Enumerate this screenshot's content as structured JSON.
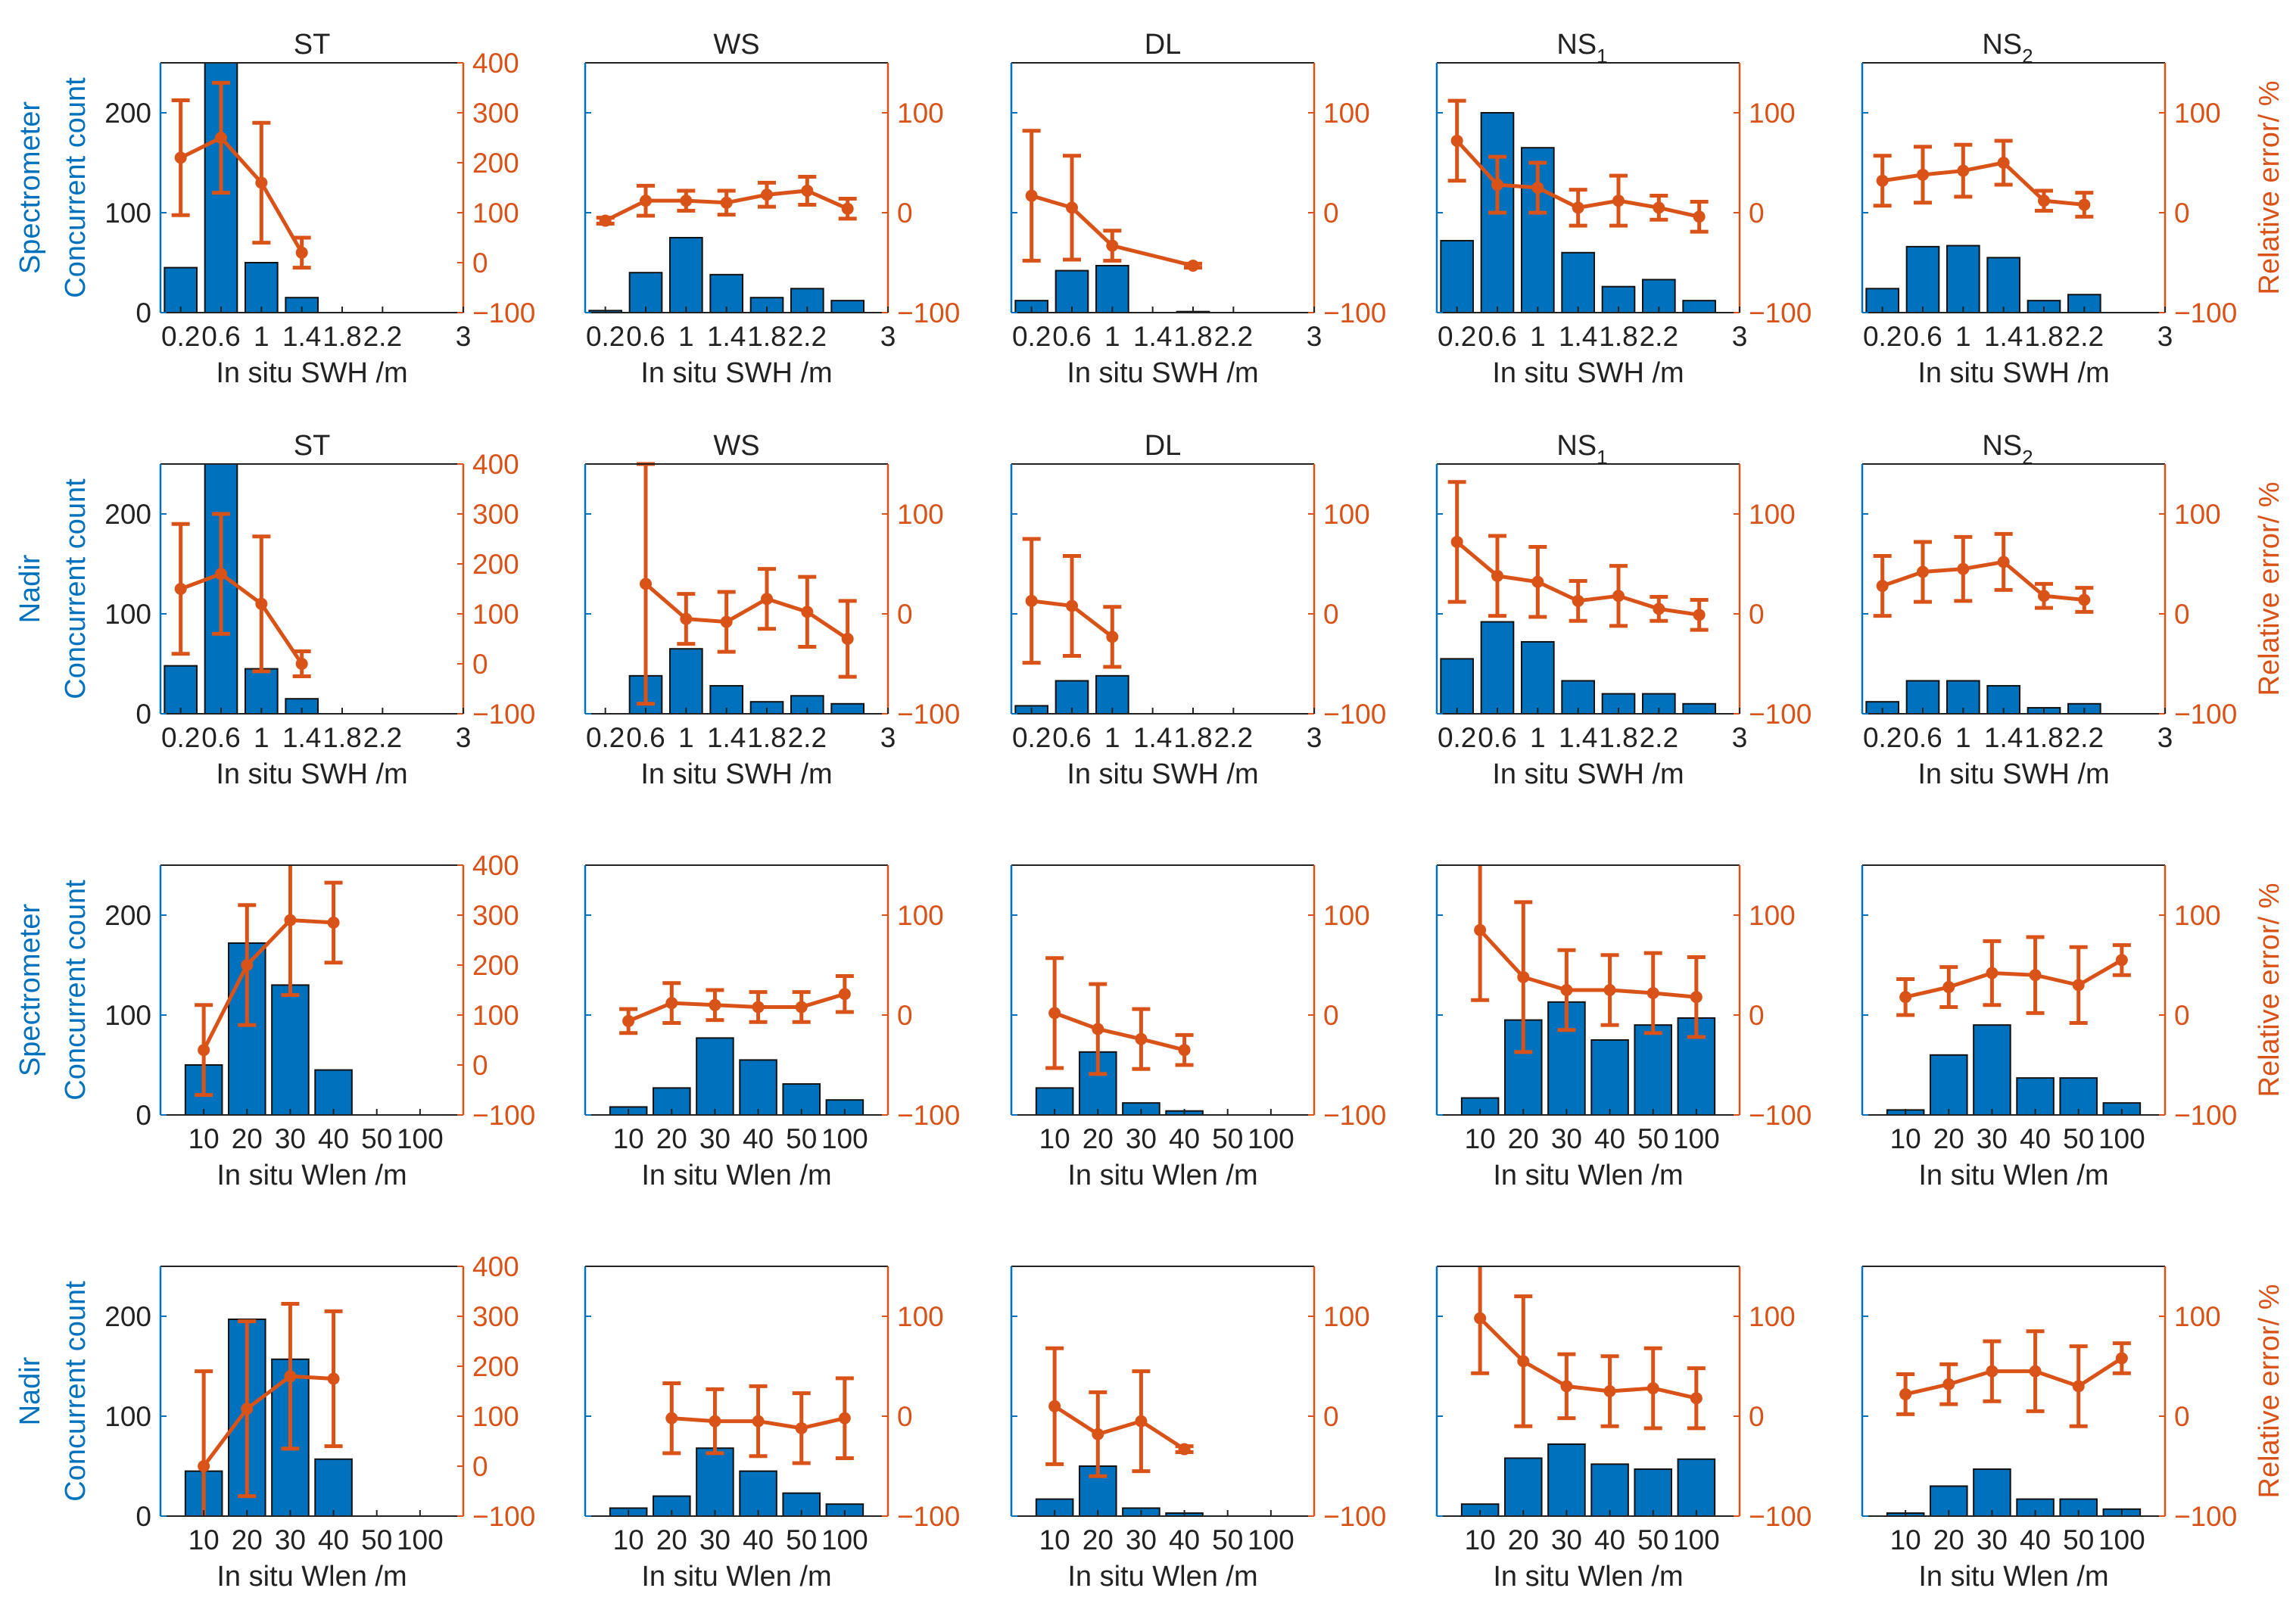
{
  "colors": {
    "left_axis": "#0072BD",
    "right_axis": "#D95319",
    "bar_fill": "#0072BD",
    "bar_edge": "#111111",
    "error_line": "#D95319",
    "frame": "#222222"
  },
  "left_ylim": [
    0,
    250
  ],
  "left_ticks": [
    "0",
    "100",
    "200"
  ],
  "left_tick_values": [
    0,
    100,
    200
  ],
  "right_tick_sets": {
    "big": {
      "ylim": [
        -100,
        400
      ],
      "labels": [
        "400",
        "300",
        "200",
        "100",
        "0",
        "−100"
      ],
      "values": [
        400,
        300,
        200,
        100,
        0,
        -100
      ]
    },
    "small": {
      "ylim": [
        -100,
        150
      ],
      "labels": [
        "100",
        "0",
        "−100"
      ],
      "values": [
        100,
        0,
        -100
      ]
    }
  },
  "right_ylabel": "Relative error/ %",
  "x_sets": {
    "swh": {
      "xlim": [
        0,
        3
      ],
      "tick_values": [
        0.2,
        0.6,
        1.0,
        1.4,
        1.8,
        2.2,
        3.0
      ],
      "tick_labels": [
        "0.2",
        "0.6",
        "1",
        "1.4",
        "1.8",
        "2.2",
        "3"
      ],
      "bar_centers": [
        0.2,
        0.6,
        1.0,
        1.4,
        1.8,
        2.2,
        2.6
      ],
      "bar_width": 0.32,
      "xlabel": "In situ SWH /m"
    },
    "wlen": {
      "xlim": [
        0,
        7
      ],
      "tick_values": [
        1,
        2,
        3,
        4,
        5,
        6
      ],
      "tick_labels": [
        "10",
        "20",
        "30",
        "40",
        "50",
        "100"
      ],
      "bar_centers": [
        1,
        2,
        3,
        4,
        5,
        6
      ],
      "bar_width": 0.85,
      "xlabel": "In situ Wlen /m"
    }
  },
  "rows": [
    {
      "row_label": "Spectrometer",
      "ylabel": "Concurrent count"
    },
    {
      "row_label": "Nadir",
      "ylabel": "Concurrent count"
    },
    {
      "row_label": "Spectrometer",
      "ylabel": "Concurrent count"
    },
    {
      "row_label": "Nadir",
      "ylabel": "Concurrent count"
    }
  ],
  "chart_data": [
    {
      "type": "bar+errorbar",
      "row": 0,
      "col": 0,
      "title": "ST",
      "sub": "",
      "x_set": "swh",
      "right_set": "big",
      "counts": [
        45,
        250,
        50,
        15,
        0,
        0,
        0
      ],
      "err_mean": [
        210,
        250,
        160,
        20,
        null,
        null,
        null
      ],
      "err_std": [
        115,
        110,
        120,
        30,
        null,
        null,
        null
      ]
    },
    {
      "type": "bar+errorbar",
      "row": 0,
      "col": 1,
      "title": "WS",
      "sub": "",
      "x_set": "swh",
      "right_set": "small",
      "counts": [
        2,
        40,
        75,
        38,
        15,
        24,
        12
      ],
      "err_mean": [
        -8,
        12,
        12,
        10,
        18,
        22,
        4
      ],
      "err_std": [
        3,
        15,
        10,
        12,
        12,
        14,
        10
      ]
    },
    {
      "type": "bar+errorbar",
      "row": 0,
      "col": 2,
      "title": "DL",
      "sub": "",
      "x_set": "swh",
      "right_set": "small",
      "counts": [
        12,
        42,
        47,
        0,
        1,
        0,
        0
      ],
      "err_mean": [
        17,
        5,
        -33,
        null,
        -53,
        null,
        null
      ],
      "err_std": [
        65,
        52,
        15,
        null,
        2,
        null,
        null
      ]
    },
    {
      "type": "bar+errorbar",
      "row": 0,
      "col": 3,
      "title": "NS",
      "sub": "1",
      "x_set": "swh",
      "right_set": "small",
      "counts": [
        72,
        200,
        165,
        60,
        26,
        33,
        12
      ],
      "err_mean": [
        72,
        28,
        25,
        5,
        12,
        5,
        -4
      ],
      "err_std": [
        40,
        28,
        25,
        18,
        25,
        12,
        15
      ]
    },
    {
      "type": "bar+errorbar",
      "row": 0,
      "col": 4,
      "title": "NS",
      "sub": "2",
      "x_set": "swh",
      "right_set": "small",
      "counts": [
        24,
        66,
        67,
        55,
        12,
        18,
        0
      ],
      "err_mean": [
        32,
        38,
        42,
        50,
        12,
        8,
        null
      ],
      "err_std": [
        25,
        28,
        26,
        22,
        10,
        12,
        null
      ]
    },
    {
      "type": "bar+errorbar",
      "row": 1,
      "col": 0,
      "title": "ST",
      "sub": "",
      "x_set": "swh",
      "right_set": "big",
      "counts": [
        48,
        250,
        45,
        15,
        0,
        0,
        0
      ],
      "err_mean": [
        150,
        180,
        120,
        0,
        null,
        null,
        null
      ],
      "err_std": [
        130,
        120,
        135,
        25,
        null,
        null,
        null
      ]
    },
    {
      "type": "bar+errorbar",
      "row": 1,
      "col": 1,
      "title": "WS",
      "sub": "",
      "x_set": "swh",
      "right_set": "small",
      "counts": [
        0,
        38,
        65,
        28,
        12,
        18,
        10
      ],
      "err_mean": [
        null,
        30,
        -5,
        -8,
        15,
        2,
        -25
      ],
      "err_std": [
        null,
        120,
        25,
        30,
        30,
        35,
        38
      ]
    },
    {
      "type": "bar+errorbar",
      "row": 1,
      "col": 2,
      "title": "DL",
      "sub": "",
      "x_set": "swh",
      "right_set": "small",
      "counts": [
        8,
        33,
        38,
        0,
        0,
        0,
        0
      ],
      "err_mean": [
        13,
        8,
        -23,
        null,
        null,
        null,
        null
      ],
      "err_std": [
        62,
        50,
        30,
        null,
        null,
        null,
        null
      ]
    },
    {
      "type": "bar+errorbar",
      "row": 1,
      "col": 3,
      "title": "NS",
      "sub": "1",
      "x_set": "swh",
      "right_set": "small",
      "counts": [
        55,
        92,
        72,
        33,
        20,
        20,
        10
      ],
      "err_mean": [
        72,
        38,
        32,
        13,
        18,
        5,
        -1
      ],
      "err_std": [
        60,
        40,
        35,
        20,
        30,
        12,
        15
      ]
    },
    {
      "type": "bar+errorbar",
      "row": 1,
      "col": 4,
      "title": "NS",
      "sub": "2",
      "x_set": "swh",
      "right_set": "small",
      "counts": [
        12,
        33,
        33,
        28,
        6,
        10,
        0
      ],
      "err_mean": [
        28,
        42,
        45,
        52,
        18,
        14,
        null
      ],
      "err_std": [
        30,
        30,
        32,
        28,
        12,
        12,
        null
      ]
    },
    {
      "type": "bar+errorbar",
      "row": 2,
      "col": 0,
      "title": "",
      "sub": "",
      "x_set": "wlen",
      "right_set": "big",
      "counts": [
        50,
        172,
        130,
        45,
        0,
        0
      ],
      "err_mean": [
        30,
        200,
        290,
        285,
        null,
        null
      ],
      "err_std": [
        90,
        120,
        150,
        80,
        null,
        null
      ]
    },
    {
      "type": "bar+errorbar",
      "row": 2,
      "col": 1,
      "title": "",
      "sub": "",
      "x_set": "wlen",
      "right_set": "small",
      "counts": [
        8,
        27,
        77,
        55,
        31,
        15
      ],
      "err_mean": [
        -6,
        12,
        10,
        8,
        8,
        21
      ],
      "err_std": [
        12,
        20,
        15,
        15,
        15,
        18
      ]
    },
    {
      "type": "bar+errorbar",
      "row": 2,
      "col": 2,
      "title": "",
      "sub": "",
      "x_set": "wlen",
      "right_set": "small",
      "counts": [
        27,
        63,
        12,
        4,
        0,
        0
      ],
      "err_mean": [
        2,
        -14,
        -24,
        -35,
        null,
        null
      ],
      "err_std": [
        55,
        45,
        30,
        15,
        null,
        null
      ]
    },
    {
      "type": "bar+errorbar",
      "row": 2,
      "col": 3,
      "title": "",
      "sub": "",
      "x_set": "wlen",
      "right_set": "small",
      "counts": [
        17,
        95,
        113,
        75,
        90,
        97
      ],
      "err_mean": [
        85,
        38,
        25,
        25,
        22,
        18
      ],
      "err_std": [
        70,
        75,
        40,
        35,
        40,
        40
      ]
    },
    {
      "type": "bar+errorbar",
      "row": 2,
      "col": 4,
      "title": "",
      "sub": "",
      "x_set": "wlen",
      "right_set": "small",
      "counts": [
        5,
        60,
        90,
        37,
        37,
        12
      ],
      "err_mean": [
        18,
        28,
        42,
        40,
        30,
        55
      ],
      "err_std": [
        18,
        20,
        32,
        38,
        38,
        15
      ]
    },
    {
      "type": "bar+errorbar",
      "row": 3,
      "col": 0,
      "title": "",
      "sub": "",
      "x_set": "wlen",
      "right_set": "big",
      "counts": [
        45,
        197,
        157,
        57,
        0,
        0
      ],
      "err_mean": [
        0,
        115,
        180,
        175,
        null,
        null
      ],
      "err_std": [
        190,
        175,
        145,
        135,
        null,
        null
      ]
    },
    {
      "type": "bar+errorbar",
      "row": 3,
      "col": 1,
      "title": "",
      "sub": "",
      "x_set": "wlen",
      "right_set": "small",
      "counts": [
        8,
        20,
        68,
        45,
        23,
        12
      ],
      "err_mean": [
        null,
        -2,
        -5,
        -5,
        -12,
        -2
      ],
      "err_std": [
        null,
        35,
        32,
        35,
        35,
        40
      ]
    },
    {
      "type": "bar+errorbar",
      "row": 3,
      "col": 2,
      "title": "",
      "sub": "",
      "x_set": "wlen",
      "right_set": "small",
      "counts": [
        17,
        50,
        8,
        3,
        0,
        0
      ],
      "err_mean": [
        10,
        -18,
        -5,
        -33,
        null,
        null
      ],
      "err_std": [
        58,
        42,
        50,
        3,
        null,
        null
      ]
    },
    {
      "type": "bar+errorbar",
      "row": 3,
      "col": 3,
      "title": "",
      "sub": "",
      "x_set": "wlen",
      "right_set": "small",
      "counts": [
        12,
        58,
        72,
        52,
        47,
        57
      ],
      "err_mean": [
        98,
        55,
        30,
        25,
        28,
        18
      ],
      "err_std": [
        55,
        65,
        32,
        35,
        40,
        30
      ]
    },
    {
      "type": "bar+errorbar",
      "row": 3,
      "col": 4,
      "title": "",
      "sub": "",
      "x_set": "wlen",
      "right_set": "small",
      "counts": [
        3,
        30,
        47,
        17,
        17,
        7
      ],
      "err_mean": [
        22,
        32,
        45,
        45,
        30,
        58
      ],
      "err_std": [
        20,
        20,
        30,
        40,
        40,
        15
      ]
    }
  ]
}
